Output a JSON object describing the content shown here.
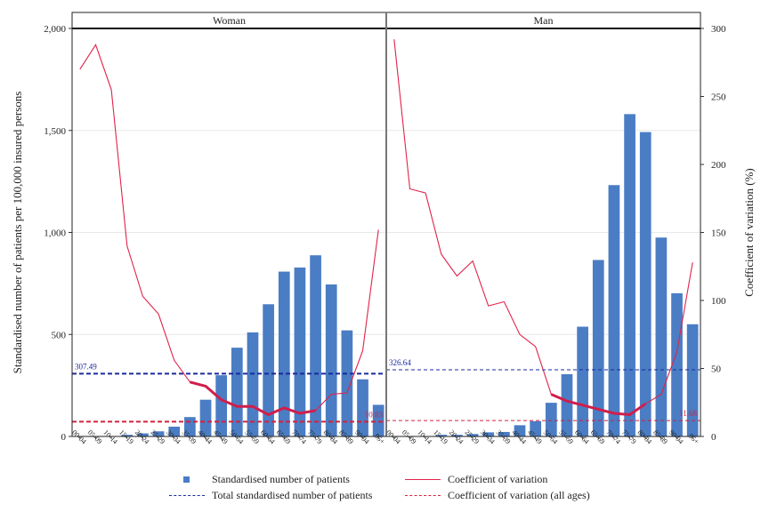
{
  "chart_data": {
    "type": "bar",
    "panels": [
      "Woman",
      "Man"
    ],
    "categories": [
      "00-04",
      "05-09",
      "10-14",
      "15-19",
      "20-24",
      "25-29",
      "30-34",
      "35-39",
      "40-44",
      "45-49",
      "50-54",
      "55-59",
      "60-64",
      "65-69",
      "70-74",
      "75-79",
      "80-84",
      "85-89",
      "90-94",
      "95+"
    ],
    "series": [
      {
        "name": "Standardised number of patients",
        "kind": "bar",
        "axis": "left",
        "color": "#4a7dc4",
        "values_by_panel": [
          [
            0,
            0,
            0,
            8,
            15,
            25,
            48,
            95,
            180,
            300,
            435,
            510,
            648,
            808,
            828,
            888,
            745,
            520,
            280,
            155
          ],
          [
            0,
            0,
            0,
            8,
            8,
            12,
            20,
            22,
            55,
            75,
            165,
            305,
            538,
            865,
            1232,
            1580,
            1492,
            975,
            702,
            550
          ]
        ]
      },
      {
        "name": "Coefficient of variation",
        "kind": "line",
        "axis": "right",
        "color": "#e0234a",
        "values_by_panel": [
          [
            270,
            288,
            255,
            140,
            103,
            90,
            56,
            40,
            37,
            27,
            22,
            22,
            16,
            21,
            17,
            19,
            31,
            32,
            63,
            152
          ],
          [
            292,
            182,
            179,
            134,
            118,
            129,
            96,
            99,
            75,
            66,
            31,
            26,
            23,
            20,
            17,
            16,
            24,
            31,
            62,
            128
          ]
        ],
        "highlight_range_by_panel": [
          [
            7,
            15
          ],
          [
            10,
            16
          ]
        ]
      },
      {
        "name": "Total standardised number of patients",
        "kind": "hline",
        "axis": "left",
        "color": "#1b2a9c",
        "values_by_panel": [
          307.49,
          326.64
        ],
        "labels": [
          "307.49",
          "326.64"
        ]
      },
      {
        "name": "Coefficient of variation (all ages)",
        "kind": "hline",
        "axis": "right",
        "color": "#d2223f",
        "values_by_panel": [
          10.83,
          11.68
        ],
        "labels": [
          "10.83",
          "11.68"
        ]
      }
    ],
    "ylabel": "Standardised number of patients per 100,000 insured persons",
    "y2label": "Coefficient of variation (%)",
    "ylim": [
      0,
      2000
    ],
    "y2lim": [
      0,
      300
    ],
    "yticks": [
      "0",
      "500",
      "1,000",
      "1,500",
      "2,000"
    ],
    "y2ticks": [
      "0",
      "50",
      "100",
      "150",
      "200",
      "250",
      "300"
    ],
    "grid": true,
    "legend_position": "bottom"
  }
}
